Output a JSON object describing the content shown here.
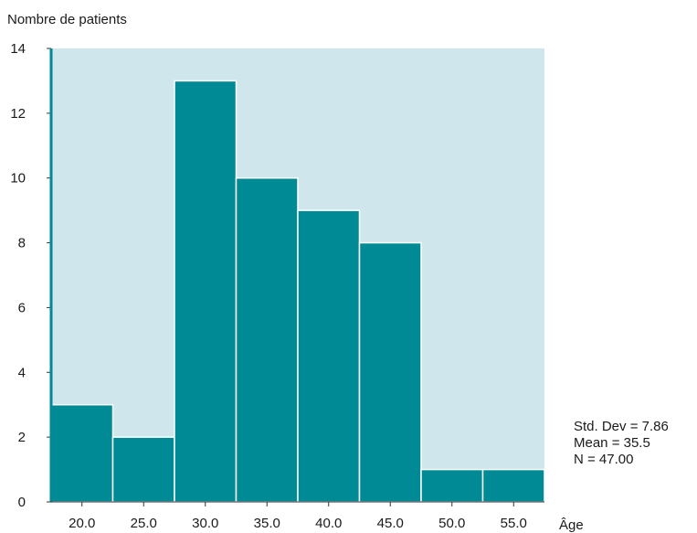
{
  "chart_data": {
    "type": "bar",
    "ylabel": "Nombre de patients",
    "xlabel": "Âge",
    "categories": [
      "20.0",
      "25.0",
      "30.0",
      "35.0",
      "40.0",
      "45.0",
      "50.0",
      "55.0"
    ],
    "bins": [
      {
        "center": 20.0,
        "count": 3
      },
      {
        "center": 25.0,
        "count": 2
      },
      {
        "center": 30.0,
        "count": 13
      },
      {
        "center": 35.0,
        "count": 10
      },
      {
        "center": 40.0,
        "count": 9
      },
      {
        "center": 45.0,
        "count": 8
      },
      {
        "center": 50.0,
        "count": 1
      },
      {
        "center": 55.0,
        "count": 1
      }
    ],
    "ylim": [
      0,
      14
    ],
    "yticks": [
      0,
      2,
      4,
      6,
      8,
      10,
      12,
      14
    ],
    "bin_width": 5,
    "grid": false,
    "colors": {
      "bar": "#008a96",
      "plot_background": "#cfe6ec",
      "axis": "#008a96"
    }
  },
  "stats": {
    "std_dev": "Std. Dev = 7.86",
    "mean": "Mean = 35.5",
    "n": "N = 47.00"
  }
}
